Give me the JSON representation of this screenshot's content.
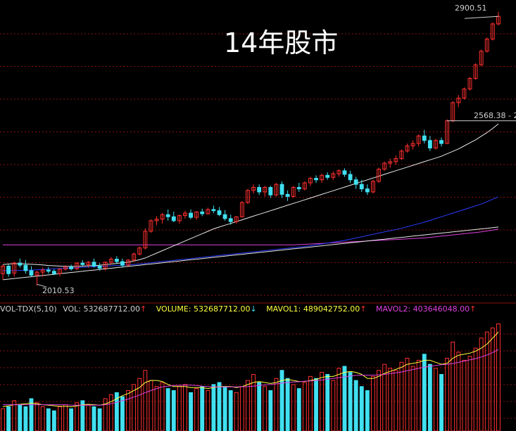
{
  "title": "14年股市",
  "colors": {
    "background": "#000000",
    "grid": "#8a1010",
    "up": "#ff3030",
    "down": "#40e0f0",
    "ma_white": "#e8e8e8",
    "ma_blue": "#2a3cff",
    "ma_magenta": "#e040e0",
    "vol_label": "#d0d0d0",
    "volume_label": "#ffff40",
    "mavol1_label": "#ffff40",
    "mavol2_label": "#e040e0",
    "arrow_up": "#ff3030",
    "arrow_down": "#40e0f0"
  },
  "volume_legend": {
    "indicator": "VOL-TDX(5,10)",
    "vol": "VOL: 532687712.00",
    "volume": "VOLUME: 532687712.00",
    "mavol1": "MAVOL1: 489042752.00",
    "mavol2": "MAVOL2: 403646048.00",
    "arrow_up": "↑",
    "arrow_down": "↓"
  },
  "price_labels": {
    "high": "2900.51",
    "mid": "2568.38 - 2",
    "low": "2010.53"
  },
  "chart_data": {
    "type": "candlestick",
    "title": "14年股市",
    "price_ylim": [
      1960,
      2940
    ],
    "candles": [
      [
        2050,
        2080,
        2030,
        2075
      ],
      [
        2075,
        2080,
        2040,
        2050
      ],
      [
        2052,
        2090,
        2040,
        2085
      ],
      [
        2085,
        2100,
        2070,
        2078
      ],
      [
        2078,
        2095,
        2050,
        2060
      ],
      [
        2060,
        2075,
        2040,
        2045
      ],
      [
        2045,
        2060,
        2010,
        2055
      ],
      [
        2055,
        2070,
        2040,
        2062
      ],
      [
        2062,
        2072,
        2050,
        2058
      ],
      [
        2058,
        2065,
        2045,
        2050
      ],
      [
        2050,
        2068,
        2042,
        2065
      ],
      [
        2065,
        2078,
        2060,
        2072
      ],
      [
        2072,
        2080,
        2060,
        2066
      ],
      [
        2066,
        2088,
        2062,
        2085
      ],
      [
        2085,
        2095,
        2075,
        2080
      ],
      [
        2080,
        2092,
        2070,
        2088
      ],
      [
        2088,
        2100,
        2070,
        2075
      ],
      [
        2075,
        2085,
        2060,
        2068
      ],
      [
        2068,
        2090,
        2060,
        2088
      ],
      [
        2088,
        2105,
        2080,
        2098
      ],
      [
        2098,
        2108,
        2082,
        2090
      ],
      [
        2090,
        2100,
        2070,
        2078
      ],
      [
        2078,
        2098,
        2075,
        2095
      ],
      [
        2095,
        2120,
        2090,
        2115
      ],
      [
        2115,
        2140,
        2110,
        2135
      ],
      [
        2135,
        2200,
        2130,
        2190
      ],
      [
        2190,
        2230,
        2185,
        2225
      ],
      [
        2225,
        2240,
        2210,
        2230
      ],
      [
        2230,
        2250,
        2215,
        2245
      ],
      [
        2245,
        2262,
        2225,
        2238
      ],
      [
        2238,
        2255,
        2220,
        2225
      ],
      [
        2225,
        2245,
        2215,
        2242
      ],
      [
        2242,
        2258,
        2232,
        2250
      ],
      [
        2250,
        2262,
        2230,
        2236
      ],
      [
        2236,
        2256,
        2228,
        2254
      ],
      [
        2254,
        2265,
        2240,
        2248
      ],
      [
        2248,
        2268,
        2245,
        2262
      ],
      [
        2262,
        2275,
        2250,
        2258
      ],
      [
        2258,
        2270,
        2240,
        2245
      ],
      [
        2245,
        2260,
        2225,
        2232
      ],
      [
        2232,
        2245,
        2212,
        2222
      ],
      [
        2222,
        2240,
        2215,
        2238
      ],
      [
        2238,
        2290,
        2235,
        2285
      ],
      [
        2285,
        2330,
        2280,
        2325
      ],
      [
        2325,
        2345,
        2315,
        2335
      ],
      [
        2335,
        2345,
        2310,
        2320
      ],
      [
        2320,
        2340,
        2305,
        2335
      ],
      [
        2335,
        2340,
        2300,
        2310
      ],
      [
        2310,
        2350,
        2305,
        2345
      ],
      [
        2345,
        2355,
        2300,
        2312
      ],
      [
        2312,
        2325,
        2290,
        2305
      ],
      [
        2305,
        2340,
        2300,
        2335
      ],
      [
        2335,
        2350,
        2320,
        2330
      ],
      [
        2330,
        2355,
        2325,
        2350
      ],
      [
        2350,
        2370,
        2340,
        2365
      ],
      [
        2365,
        2375,
        2350,
        2360
      ],
      [
        2360,
        2380,
        2350,
        2375
      ],
      [
        2375,
        2385,
        2360,
        2368
      ],
      [
        2368,
        2388,
        2360,
        2380
      ],
      [
        2380,
        2395,
        2370,
        2390
      ],
      [
        2390,
        2398,
        2370,
        2378
      ],
      [
        2378,
        2390,
        2350,
        2360
      ],
      [
        2360,
        2370,
        2330,
        2345
      ],
      [
        2345,
        2360,
        2320,
        2330
      ],
      [
        2330,
        2345,
        2310,
        2320
      ],
      [
        2320,
        2360,
        2315,
        2355
      ],
      [
        2355,
        2400,
        2350,
        2395
      ],
      [
        2395,
        2420,
        2390,
        2415
      ],
      [
        2415,
        2430,
        2400,
        2420
      ],
      [
        2420,
        2440,
        2410,
        2430
      ],
      [
        2430,
        2460,
        2425,
        2455
      ],
      [
        2455,
        2480,
        2450,
        2472
      ],
      [
        2472,
        2490,
        2460,
        2480
      ],
      [
        2480,
        2510,
        2470,
        2505
      ],
      [
        2505,
        2525,
        2480,
        2490
      ],
      [
        2490,
        2505,
        2455,
        2465
      ],
      [
        2465,
        2495,
        2460,
        2490
      ],
      [
        2490,
        2500,
        2470,
        2480
      ],
      [
        2480,
        2560,
        2478,
        2555
      ],
      [
        2555,
        2620,
        2550,
        2615
      ],
      [
        2615,
        2640,
        2600,
        2630
      ],
      [
        2630,
        2665,
        2625,
        2660
      ],
      [
        2660,
        2700,
        2655,
        2695
      ],
      [
        2695,
        2745,
        2690,
        2740
      ],
      [
        2740,
        2790,
        2735,
        2785
      ],
      [
        2785,
        2830,
        2780,
        2825
      ],
      [
        2825,
        2880,
        2820,
        2875
      ],
      [
        2875,
        2915,
        2870,
        2900
      ]
    ],
    "ma_white": [
      2080,
      2082,
      2083,
      2083,
      2082,
      2081,
      2080,
      2079,
      2077,
      2076,
      2075,
      2074,
      2074,
      2074,
      2075,
      2076,
      2077,
      2078,
      2080,
      2082,
      2084,
      2086,
      2088,
      2092,
      2096,
      2102,
      2110,
      2118,
      2126,
      2134,
      2142,
      2150,
      2158,
      2166,
      2174,
      2182,
      2190,
      2198,
      2204,
      2210,
      2216,
      2222,
      2228,
      2234,
      2240,
      2246,
      2252,
      2258,
      2264,
      2270,
      2276,
      2282,
      2288,
      2294,
      2300,
      2306,
      2312,
      2318,
      2324,
      2330,
      2336,
      2342,
      2348,
      2354,
      2360,
      2366,
      2372,
      2378,
      2384,
      2390,
      2396,
      2402,
      2408,
      2414,
      2420,
      2426,
      2432,
      2438,
      2446,
      2454,
      2462,
      2472,
      2482,
      2492,
      2504,
      2516,
      2530,
      2545
    ],
    "ma_blue": [
      2060,
      2060,
      2060,
      2061,
      2062,
      2062,
      2063,
      2064,
      2065,
      2066,
      2067,
      2068,
      2069,
      2070,
      2071,
      2072,
      2073,
      2074,
      2075,
      2076,
      2077,
      2078,
      2079,
      2080,
      2082,
      2084,
      2086,
      2088,
      2090,
      2092,
      2094,
      2096,
      2098,
      2100,
      2102,
      2104,
      2106,
      2108,
      2110,
      2112,
      2114,
      2116,
      2118,
      2120,
      2122,
      2124,
      2126,
      2128,
      2130,
      2132,
      2134,
      2136,
      2138,
      2140,
      2142,
      2145,
      2148,
      2151,
      2154,
      2157,
      2160,
      2164,
      2168,
      2172,
      2176,
      2180,
      2184,
      2188,
      2192,
      2196,
      2200,
      2205,
      2210,
      2215,
      2220,
      2226,
      2232,
      2238,
      2244,
      2250,
      2256,
      2262,
      2268,
      2274,
      2280,
      2288,
      2296,
      2304
    ],
    "ma_magenta": [
      2145,
      2145,
      2145,
      2145,
      2145,
      2145,
      2145,
      2145,
      2145,
      2145,
      2145,
      2145,
      2145,
      2145,
      2145,
      2145,
      2145,
      2145,
      2145,
      2145,
      2145,
      2145,
      2145,
      2145,
      2145,
      2145,
      2145,
      2145,
      2145,
      2145,
      2145,
      2145,
      2145,
      2145,
      2145,
      2145,
      2145,
      2145,
      2145,
      2145,
      2145,
      2145,
      2145,
      2145,
      2145,
      2145,
      2145,
      2145,
      2145,
      2145,
      2145,
      2145,
      2146,
      2147,
      2148,
      2149,
      2150,
      2151,
      2152,
      2153,
      2154,
      2155,
      2156,
      2157,
      2158,
      2159,
      2160,
      2161,
      2162,
      2163,
      2164,
      2165,
      2166,
      2167,
      2168,
      2170,
      2172,
      2174,
      2176,
      2178,
      2180,
      2182,
      2184,
      2186,
      2188,
      2191,
      2194,
      2197
    ],
    "ma_white2": [
      2030,
      2032,
      2034,
      2036,
      2038,
      2040,
      2042,
      2044,
      2046,
      2048,
      2050,
      2052,
      2054,
      2056,
      2058,
      2060,
      2062,
      2064,
      2066,
      2068,
      2070,
      2072,
      2074,
      2076,
      2078,
      2080,
      2082,
      2084,
      2086,
      2088,
      2090,
      2092,
      2094,
      2096,
      2098,
      2100,
      2102,
      2104,
      2106,
      2108,
      2110,
      2112,
      2114,
      2116,
      2118,
      2120,
      2122,
      2124,
      2126,
      2128,
      2130,
      2132,
      2134,
      2136,
      2138,
      2140,
      2142,
      2144,
      2146,
      2148,
      2150,
      2152,
      2154,
      2156,
      2158,
      2160,
      2162,
      2164,
      2166,
      2168,
      2170,
      2172,
      2174,
      2176,
      2178,
      2180,
      2182,
      2184,
      2186,
      2188,
      2190,
      2192,
      2194,
      2196,
      2198,
      2200,
      2202,
      2204
    ],
    "vol_ylim": [
      0,
      560000000
    ],
    "volumes": [
      110000000.0,
      120000000.0,
      150000000.0,
      130000000.0,
      120000000.0,
      160000000.0,
      140000000.0,
      120000000.0,
      110000000.0,
      100000000.0,
      120000000.0,
      130000000.0,
      110000000.0,
      140000000.0,
      150000000.0,
      130000000.0,
      120000000.0,
      110000000.0,
      160000000.0,
      180000000.0,
      190000000.0,
      170000000.0,
      200000000.0,
      230000000.0,
      260000000.0,
      300000000.0,
      250000000.0,
      220000000.0,
      240000000.0,
      210000000.0,
      200000000.0,
      220000000.0,
      230000000.0,
      190000000.0,
      210000000.0,
      220000000.0,
      200000000.0,
      230000000.0,
      240000000.0,
      220000000.0,
      200000000.0,
      190000000.0,
      220000000.0,
      250000000.0,
      280000000.0,
      240000000.0,
      220000000.0,
      200000000.0,
      260000000.0,
      300000000.0,
      260000000.0,
      230000000.0,
      210000000.0,
      240000000.0,
      270000000.0,
      260000000.0,
      290000000.0,
      280000000.0,
      250000000.0,
      310000000.0,
      320000000.0,
      290000000.0,
      250000000.0,
      220000000.0,
      200000000.0,
      270000000.0,
      300000000.0,
      330000000.0,
      310000000.0,
      300000000.0,
      340000000.0,
      360000000.0,
      320000000.0,
      350000000.0,
      380000000.0,
      330000000.0,
      310000000.0,
      280000000.0,
      360000000.0,
      440000000.0,
      390000000.0,
      350000000.0,
      370000000.0,
      410000000.0,
      460000000.0,
      490000000.0,
      510000000.0,
      530000000.0
    ],
    "mavol1": [
      120000000.0,
      125000000.0,
      130000000.0,
      132000000.0,
      135000000.0,
      138000000.0,
      135000000.0,
      130000000.0,
      128000000.0,
      125000000.0,
      122000000.0,
      122000000.0,
      120000000.0,
      124000000.0,
      130000000.0,
      132000000.0,
      130000000.0,
      128000000.0,
      134000000.0,
      145000000.0,
      160000000.0,
      175000000.0,
      185000000.0,
      200000000.0,
      215000000.0,
      240000000.0,
      250000000.0,
      250000000.0,
      245000000.0,
      230000000.0,
      220000000.0,
      220000000.0,
      220000000.0,
      215000000.0,
      215000000.0,
      215000000.0,
      210000000.0,
      215000000.0,
      220000000.0,
      220000000.0,
      220000000.0,
      215000000.0,
      220000000.0,
      230000000.0,
      240000000.0,
      245000000.0,
      240000000.0,
      235000000.0,
      240000000.0,
      250000000.0,
      255000000.0,
      250000000.0,
      245000000.0,
      245000000.0,
      250000000.0,
      255000000.0,
      265000000.0,
      270000000.0,
      270000000.0,
      280000000.0,
      290000000.0,
      295000000.0,
      290000000.0,
      280000000.0,
      260000000.0,
      260000000.0,
      270000000.0,
      285000000.0,
      295000000.0,
      305000000.0,
      315000000.0,
      330000000.0,
      335000000.0,
      340000000.0,
      350000000.0,
      350000000.0,
      340000000.0,
      330000000.0,
      335000000.0,
      360000000.0,
      375000000.0,
      380000000.0,
      385000000.0,
      395000000.0,
      410000000.0,
      430000000.0,
      460000000.0,
      490000000.0
    ],
    "mavol2": [
      130000000.0,
      130000000.0,
      130000000.0,
      130000000.0,
      130000000.0,
      130000000.0,
      130000000.0,
      130000000.0,
      130000000.0,
      130000000.0,
      130000000.0,
      130000000.0,
      128000000.0,
      128000000.0,
      128000000.0,
      128000000.0,
      128000000.0,
      128000000.0,
      130000000.0,
      135000000.0,
      142000000.0,
      150000000.0,
      158000000.0,
      168000000.0,
      178000000.0,
      190000000.0,
      200000000.0,
      210000000.0,
      218000000.0,
      222000000.0,
      225000000.0,
      226000000.0,
      227000000.0,
      227000000.0,
      225000000.0,
      222000000.0,
      220000000.0,
      218000000.0,
      218000000.0,
      218000000.0,
      218000000.0,
      218000000.0,
      219000000.0,
      220000000.0,
      222000000.0,
      225000000.0,
      228000000.0,
      230000000.0,
      233000000.0,
      237000000.0,
      240000000.0,
      242000000.0,
      244000000.0,
      246000000.0,
      248000000.0,
      250000000.0,
      252000000.0,
      256000000.0,
      260000000.0,
      264000000.0,
      268000000.0,
      272000000.0,
      275000000.0,
      276000000.0,
      276000000.0,
      276000000.0,
      278000000.0,
      280000000.0,
      284000000.0,
      288000000.0,
      292000000.0,
      298000000.0,
      304000000.0,
      310000000.0,
      316000000.0,
      320000000.0,
      324000000.0,
      328000000.0,
      330000000.0,
      334000000.0,
      340000000.0,
      346000000.0,
      352000000.0,
      358000000.0,
      366000000.0,
      376000000.0,
      388000000.0,
      404000000.0
    ]
  }
}
